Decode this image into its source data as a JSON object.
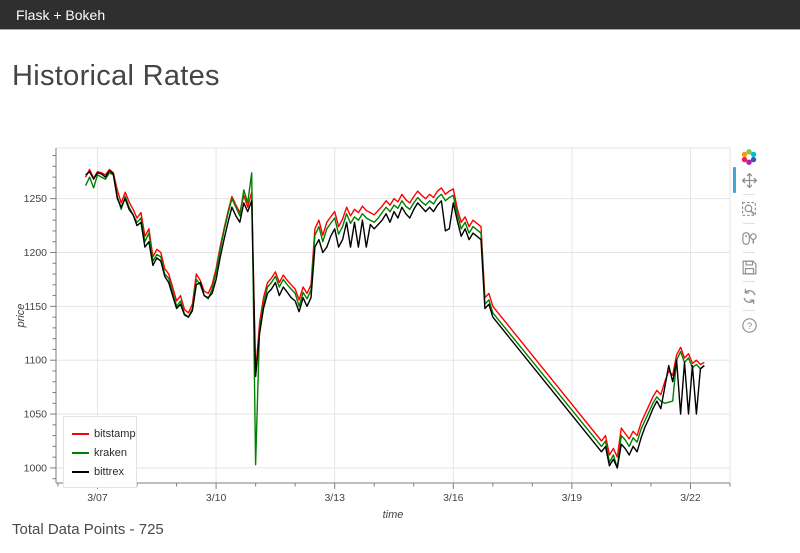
{
  "navbar": {
    "brand": "Flask + Bokeh",
    "bg_color": "#2f2f2f",
    "text_color": "#ffffff"
  },
  "page": {
    "title": "Historical Rates",
    "footer": "Total Data Points - 725"
  },
  "toolbar": {
    "logo": "bokeh-logo",
    "tools": [
      "pan",
      "box-zoom",
      "wheel-zoom",
      "save",
      "reset",
      "help"
    ],
    "active_tool": "pan",
    "active_color": "#4aa3df",
    "icon_color": "#8f8f8f"
  },
  "chart_data": {
    "type": "line",
    "title": "",
    "xlabel": "time",
    "ylabel": "price",
    "x_tick_values": [
      7,
      10,
      13,
      16,
      19,
      22
    ],
    "x_tick_labels": [
      "3/07",
      "3/10",
      "3/13",
      "3/16",
      "3/19",
      "3/22"
    ],
    "y_ticks": [
      1000,
      1050,
      1100,
      1150,
      1200,
      1250
    ],
    "x_minor_step": 1,
    "y_minor_step": 10,
    "x_range": [
      5.95,
      23.0
    ],
    "y_range": [
      986,
      1297
    ],
    "grid": true,
    "grid_color": "#e5e5e5",
    "axis_color": "#7d7d7d",
    "label_color": "#444444",
    "legend_position": "bottom-left",
    "x_unit": "day of March",
    "x": [
      6.7,
      6.8,
      6.9,
      7.0,
      7.1,
      7.2,
      7.3,
      7.4,
      7.5,
      7.6,
      7.7,
      7.8,
      7.9,
      8.0,
      8.1,
      8.2,
      8.3,
      8.4,
      8.5,
      8.6,
      8.7,
      8.8,
      8.9,
      9.0,
      9.1,
      9.2,
      9.3,
      9.4,
      9.5,
      9.6,
      9.7,
      9.8,
      9.9,
      10.0,
      10.1,
      10.2,
      10.3,
      10.4,
      10.5,
      10.6,
      10.7,
      10.8,
      10.9,
      11.0,
      11.1,
      11.2,
      11.3,
      11.4,
      11.5,
      11.6,
      11.7,
      11.8,
      11.9,
      12.0,
      12.1,
      12.2,
      12.3,
      12.4,
      12.5,
      12.6,
      12.7,
      12.8,
      12.9,
      13.0,
      13.1,
      13.2,
      13.3,
      13.4,
      13.5,
      13.6,
      13.7,
      13.8,
      13.9,
      14.0,
      14.1,
      14.2,
      14.3,
      14.4,
      14.5,
      14.6,
      14.7,
      14.8,
      14.9,
      15.0,
      15.1,
      15.2,
      15.3,
      15.4,
      15.5,
      15.6,
      15.7,
      15.8,
      15.9,
      16.0,
      16.1,
      16.2,
      16.3,
      16.4,
      16.5,
      16.6,
      16.7,
      16.8,
      16.9,
      17.0,
      19.75,
      19.85,
      19.95,
      20.05,
      20.15,
      20.25,
      20.35,
      20.45,
      20.55,
      20.65,
      20.75,
      20.85,
      20.95,
      21.05,
      21.15,
      21.25,
      21.35,
      21.45,
      21.55,
      21.65,
      21.75,
      21.85,
      21.95,
      22.05,
      22.15,
      22.25,
      22.35
    ],
    "series": [
      {
        "name": "bitstamp",
        "color": "#ff0000",
        "values": [
          1270,
          1277,
          1269,
          1275,
          1274,
          1272,
          1277,
          1274,
          1258,
          1246,
          1256,
          1247,
          1240,
          1232,
          1237,
          1215,
          1222,
          1196,
          1203,
          1200,
          1185,
          1180,
          1168,
          1155,
          1160,
          1147,
          1144,
          1152,
          1180,
          1174,
          1164,
          1162,
          1170,
          1185,
          1205,
          1222,
          1238,
          1252,
          1244,
          1237,
          1253,
          1242,
          1256,
          1088,
          1135,
          1158,
          1172,
          1176,
          1182,
          1172,
          1179,
          1174,
          1170,
          1166,
          1156,
          1168,
          1162,
          1170,
          1222,
          1230,
          1216,
          1228,
          1233,
          1238,
          1224,
          1231,
          1242,
          1234,
          1240,
          1237,
          1243,
          1239,
          1237,
          1235,
          1239,
          1243,
          1248,
          1244,
          1250,
          1247,
          1254,
          1249,
          1246,
          1252,
          1257,
          1253,
          1250,
          1254,
          1251,
          1257,
          1260,
          1254,
          1257,
          1259,
          1241,
          1228,
          1233,
          1224,
          1230,
          1227,
          1224,
          1158,
          1162,
          1150,
          1025,
          1030,
          1012,
          1018,
          1010,
          1037,
          1032,
          1027,
          1034,
          1030,
          1042,
          1050,
          1058,
          1066,
          1072,
          1068,
          1080,
          1090,
          1086,
          1105,
          1112,
          1102,
          1106,
          1097,
          1100,
          1096,
          1098
        ]
      },
      {
        "name": "kraken",
        "color": "#008000",
        "values": [
          1262,
          1270,
          1260,
          1272,
          1270,
          1268,
          1274,
          1272,
          1252,
          1240,
          1252,
          1242,
          1235,
          1228,
          1232,
          1210,
          1218,
          1192,
          1198,
          1196,
          1180,
          1176,
          1163,
          1150,
          1155,
          1143,
          1140,
          1148,
          1175,
          1170,
          1160,
          1157,
          1166,
          1182,
          1202,
          1220,
          1236,
          1250,
          1242,
          1234,
          1258,
          1246,
          1274,
          1003,
          1130,
          1152,
          1168,
          1172,
          1178,
          1168,
          1175,
          1170,
          1166,
          1162,
          1150,
          1163,
          1157,
          1165,
          1216,
          1224,
          1210,
          1222,
          1227,
          1232,
          1217,
          1224,
          1236,
          1227,
          1233,
          1230,
          1236,
          1232,
          1230,
          1228,
          1232,
          1237,
          1242,
          1238,
          1244,
          1241,
          1248,
          1243,
          1240,
          1246,
          1251,
          1247,
          1244,
          1248,
          1245,
          1251,
          1254,
          1248,
          1251,
          1253,
          1236,
          1222,
          1228,
          1218,
          1224,
          1221,
          1218,
          1152,
          1156,
          1144,
          1020,
          1025,
          1005,
          1012,
          1000,
          1030,
          1026,
          1020,
          1028,
          1024,
          1036,
          1044,
          1052,
          1060,
          1066,
          1062,
          1060,
          1061,
          1062,
          1100,
          1108,
          1098,
          1102,
          1093,
          1096,
          1092,
          1095
        ]
      },
      {
        "name": "bittrex",
        "color": "#000000",
        "values": [
          1272,
          1275,
          1268,
          1274,
          1273,
          1270,
          1276,
          1273,
          1250,
          1242,
          1250,
          1240,
          1235,
          1225,
          1228,
          1205,
          1210,
          1188,
          1195,
          1192,
          1178,
          1172,
          1160,
          1148,
          1152,
          1142,
          1140,
          1146,
          1170,
          1172,
          1160,
          1158,
          1162,
          1175,
          1195,
          1212,
          1228,
          1242,
          1234,
          1228,
          1246,
          1238,
          1248,
          1085,
          1125,
          1148,
          1162,
          1166,
          1172,
          1160,
          1168,
          1163,
          1158,
          1155,
          1145,
          1158,
          1150,
          1158,
          1205,
          1212,
          1200,
          1205,
          1215,
          1222,
          1205,
          1212,
          1228,
          1205,
          1228,
          1205,
          1230,
          1205,
          1226,
          1222,
          1226,
          1230,
          1236,
          1228,
          1238,
          1232,
          1242,
          1236,
          1232,
          1240,
          1246,
          1242,
          1238,
          1242,
          1238,
          1244,
          1248,
          1220,
          1222,
          1246,
          1230,
          1215,
          1222,
          1212,
          1218,
          1215,
          1212,
          1148,
          1152,
          1140,
          1015,
          1020,
          1002,
          1008,
          1000,
          1022,
          1018,
          1012,
          1020,
          1015,
          1028,
          1038,
          1046,
          1055,
          1062,
          1055,
          1075,
          1095,
          1080,
          1100,
          1050,
          1098,
          1050,
          1095,
          1050,
          1092,
          1095
        ]
      }
    ]
  }
}
